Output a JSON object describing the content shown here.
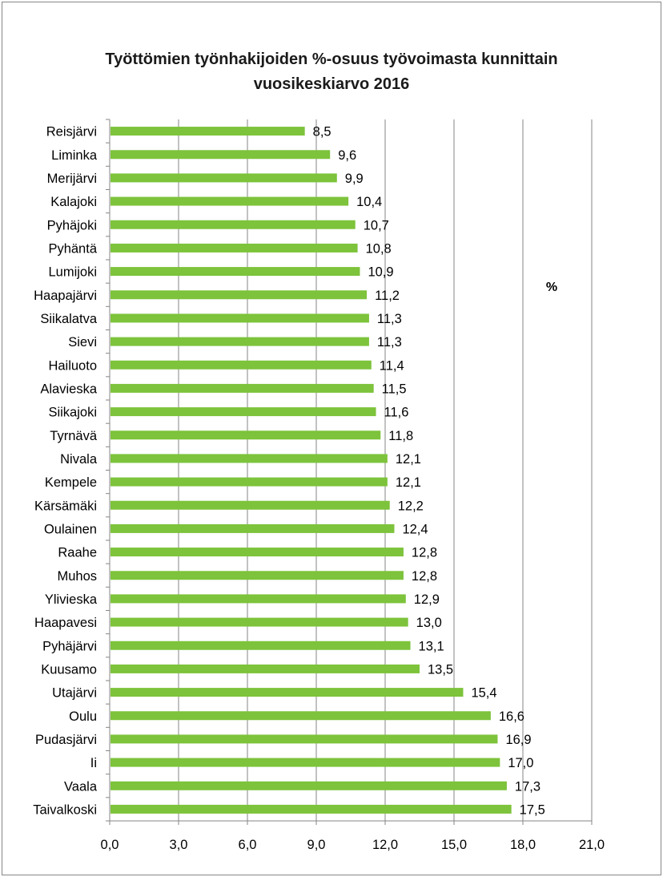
{
  "chart_data": {
    "type": "bar",
    "orientation": "horizontal",
    "title": [
      "Työttömien työnhakijoiden %-osuus työvoimasta kunnittain",
      "vuosikeskiarvo 2016"
    ],
    "unit_label": "%",
    "categories": [
      "Reisjärvi",
      "Liminka",
      "Merijärvi",
      "Kalajoki",
      "Pyhäjoki",
      "Pyhäntä",
      "Lumijoki",
      "Haapajärvi",
      "Siikalatva",
      "Sievi",
      "Hailuoto",
      "Alavieska",
      "Siikajoki",
      "Tyrnävä",
      "Nivala",
      "Kempele",
      "Kärsämäki",
      "Oulainen",
      "Raahe",
      "Muhos",
      "Ylivieska",
      "Haapavesi",
      "Pyhäjärvi",
      "Kuusamo",
      "Utajärvi",
      "Oulu",
      "Pudasjärvi",
      "Ii",
      "Vaala",
      "Taivalkoski"
    ],
    "values": [
      8.5,
      9.6,
      9.9,
      10.4,
      10.7,
      10.8,
      10.9,
      11.2,
      11.3,
      11.3,
      11.4,
      11.5,
      11.6,
      11.8,
      12.1,
      12.1,
      12.2,
      12.4,
      12.8,
      12.8,
      12.9,
      13.0,
      13.1,
      13.5,
      15.4,
      16.6,
      16.9,
      17.0,
      17.3,
      17.5
    ],
    "value_labels": [
      "8,5",
      "9,6",
      "9,9",
      "10,4",
      "10,7",
      "10,8",
      "10,9",
      "11,2",
      "11,3",
      "11,3",
      "11,4",
      "11,5",
      "11,6",
      "11,8",
      "12,1",
      "12,1",
      "12,2",
      "12,4",
      "12,8",
      "12,8",
      "12,9",
      "13,0",
      "13,1",
      "13,5",
      "15,4",
      "16,6",
      "16,9",
      "17,0",
      "17,3",
      "17,5"
    ],
    "xlim": [
      0,
      21
    ],
    "xticks": [
      0,
      3,
      6,
      9,
      12,
      15,
      18,
      21
    ],
    "xtick_labels": [
      "0,0",
      "3,0",
      "6,0",
      "9,0",
      "12,0",
      "15,0",
      "18,0",
      "21,0"
    ],
    "grid": true,
    "bar_color": "#7dc33b",
    "grid_color": "#868686",
    "xlabel": "",
    "ylabel": ""
  }
}
